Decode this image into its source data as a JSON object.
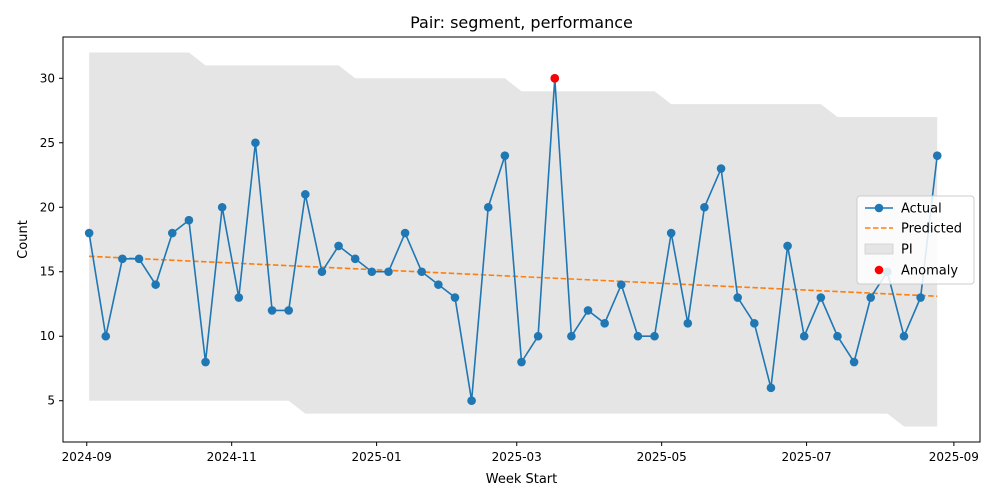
{
  "chart_data": {
    "type": "line",
    "title": "Pair: segment, performance",
    "xlabel": "Week Start",
    "ylabel": "Count",
    "xlim": [
      "2024-08-22",
      "2025-09-12"
    ],
    "ylim": [
      1.8,
      33.2
    ],
    "grid": false,
    "legend_position": "center-right",
    "x_ticks": [
      "2024-09-01",
      "2024-11-01",
      "2025-01-01",
      "2025-03-01",
      "2025-05-01",
      "2025-07-01",
      "2025-09-01"
    ],
    "x_tick_labels": [
      "2024-09",
      "2024-11",
      "2025-01",
      "2025-03",
      "2025-05",
      "2025-07",
      "2025-09"
    ],
    "y_ticks": [
      5,
      10,
      15,
      20,
      25,
      30
    ],
    "legend": [
      "Actual",
      "Predicted",
      "PI",
      "Anomaly"
    ],
    "colors": {
      "actual": "#1f77b4",
      "predicted": "#ff7f0e",
      "pi": "#e5e5e5",
      "anomaly": "#ff0000"
    },
    "x": [
      "2024-09-02",
      "2024-09-09",
      "2024-09-16",
      "2024-09-23",
      "2024-09-30",
      "2024-10-07",
      "2024-10-14",
      "2024-10-21",
      "2024-10-28",
      "2024-11-04",
      "2024-11-11",
      "2024-11-18",
      "2024-11-25",
      "2024-12-02",
      "2024-12-09",
      "2024-12-16",
      "2024-12-23",
      "2024-12-30",
      "2025-01-06",
      "2025-01-13",
      "2025-01-20",
      "2025-01-27",
      "2025-02-03",
      "2025-02-10",
      "2025-02-17",
      "2025-02-24",
      "2025-03-03",
      "2025-03-10",
      "2025-03-17",
      "2025-03-24",
      "2025-03-31",
      "2025-04-07",
      "2025-04-14",
      "2025-04-21",
      "2025-04-28",
      "2025-05-05",
      "2025-05-12",
      "2025-05-19",
      "2025-05-26",
      "2025-06-02",
      "2025-06-09",
      "2025-06-16",
      "2025-06-23",
      "2025-06-30",
      "2025-07-07",
      "2025-07-14",
      "2025-07-21",
      "2025-07-28",
      "2025-08-04",
      "2025-08-11",
      "2025-08-18",
      "2025-08-25"
    ],
    "series": [
      {
        "name": "Actual",
        "values": [
          18,
          10,
          16,
          16,
          14,
          18,
          19,
          8,
          20,
          13,
          25,
          12,
          12,
          21,
          15,
          17,
          16,
          15,
          15,
          18,
          15,
          14,
          13,
          5,
          20,
          24,
          8,
          10,
          30,
          10,
          12,
          11,
          14,
          10,
          10,
          18,
          11,
          20,
          23,
          13,
          11,
          6,
          17,
          10,
          13,
          10,
          8,
          13,
          15,
          10,
          13,
          24
        ]
      },
      {
        "name": "Predicted",
        "start": 16.2,
        "end": 13.1
      },
      {
        "name": "PI",
        "upper": [
          32,
          32,
          32,
          32,
          32,
          32,
          32,
          31,
          31,
          31,
          31,
          31,
          31,
          31,
          31,
          31,
          30,
          30,
          30,
          30,
          30,
          30,
          30,
          30,
          30,
          30,
          29,
          29,
          29,
          29,
          29,
          29,
          29,
          29,
          29,
          28,
          28,
          28,
          28,
          28,
          28,
          28,
          28,
          28,
          28,
          27,
          27,
          27,
          27,
          27,
          27,
          27
        ],
        "lower": [
          5,
          5,
          5,
          5,
          5,
          5,
          5,
          5,
          5,
          5,
          5,
          5,
          5,
          4,
          4,
          4,
          4,
          4,
          4,
          4,
          4,
          4,
          4,
          4,
          4,
          4,
          4,
          4,
          4,
          4,
          4,
          4,
          4,
          4,
          4,
          4,
          4,
          4,
          4,
          4,
          4,
          4,
          4,
          4,
          4,
          4,
          4,
          4,
          4,
          3,
          3,
          3
        ]
      }
    ],
    "anomalies": [
      {
        "x": "2025-03-17",
        "y": 30
      }
    ]
  }
}
